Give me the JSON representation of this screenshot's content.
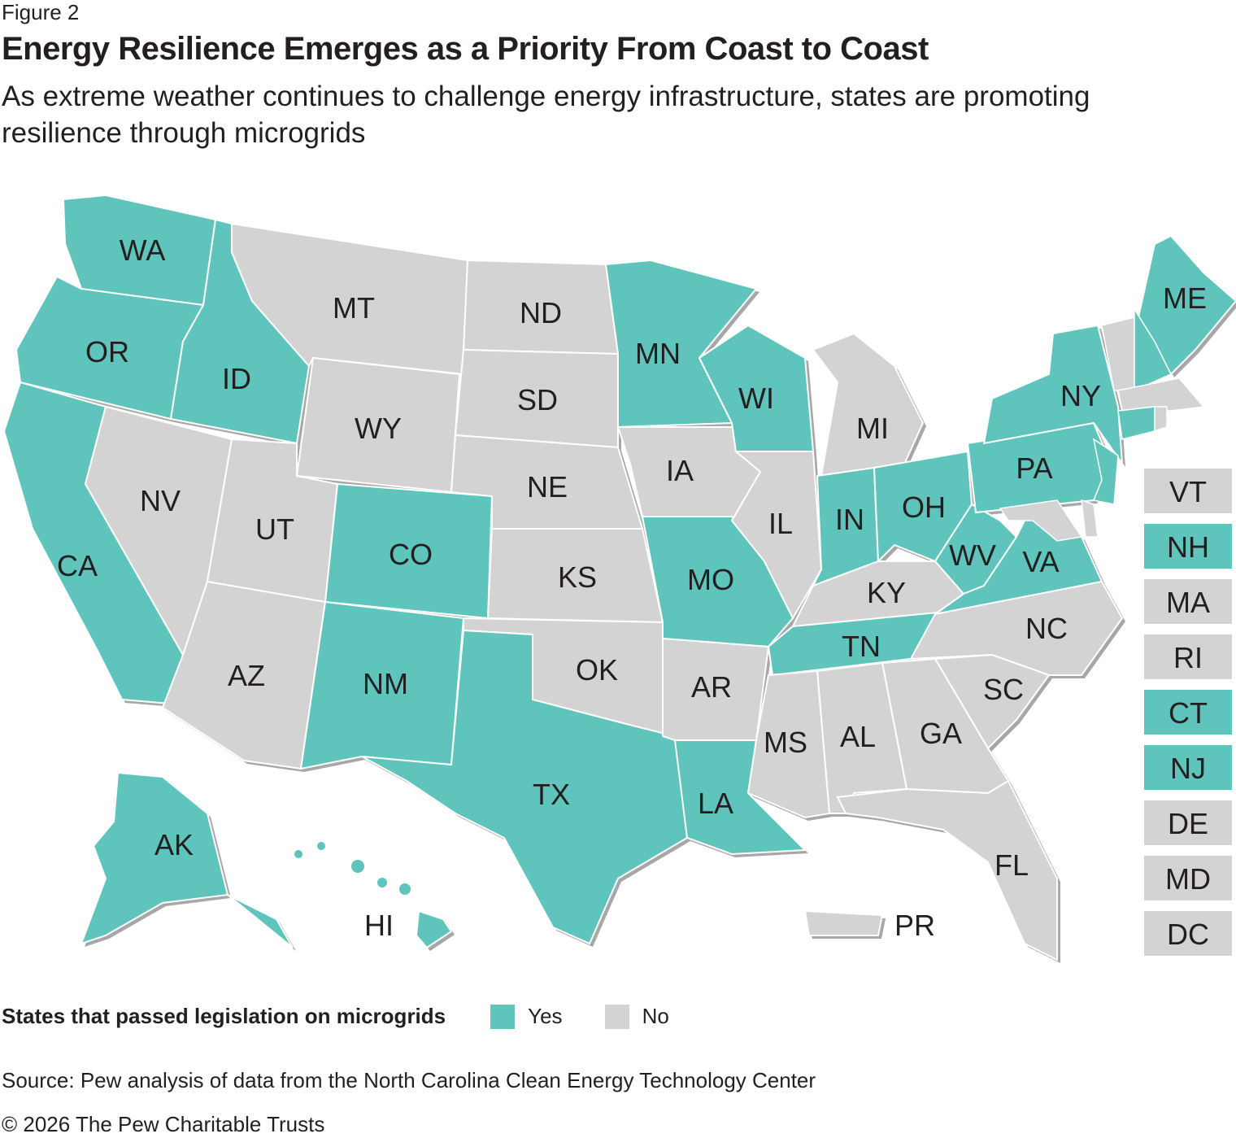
{
  "figure_label": "Figure 2",
  "title": "Energy Resilience Emerges as a Priority From Coast to Coast",
  "subtitle": "As extreme weather continues to challenge energy infrastructure, states are promoting resilience through microgrids",
  "colors": {
    "yes": "#5fc4bb",
    "no": "#d4d3d4",
    "border": "#ffffff",
    "shadow": "#a7a7a7"
  },
  "legend": {
    "title": "States that passed legislation on microgrids",
    "yes": "Yes",
    "no": "No"
  },
  "states": [
    {
      "abbr": "WA",
      "status": "yes"
    },
    {
      "abbr": "OR",
      "status": "yes"
    },
    {
      "abbr": "CA",
      "status": "yes"
    },
    {
      "abbr": "NV",
      "status": "no"
    },
    {
      "abbr": "ID",
      "status": "yes"
    },
    {
      "abbr": "MT",
      "status": "no"
    },
    {
      "abbr": "WY",
      "status": "no"
    },
    {
      "abbr": "UT",
      "status": "no"
    },
    {
      "abbr": "CO",
      "status": "yes"
    },
    {
      "abbr": "AZ",
      "status": "no"
    },
    {
      "abbr": "NM",
      "status": "yes"
    },
    {
      "abbr": "ND",
      "status": "no"
    },
    {
      "abbr": "SD",
      "status": "no"
    },
    {
      "abbr": "NE",
      "status": "no"
    },
    {
      "abbr": "KS",
      "status": "no"
    },
    {
      "abbr": "OK",
      "status": "no"
    },
    {
      "abbr": "TX",
      "status": "yes"
    },
    {
      "abbr": "MN",
      "status": "yes"
    },
    {
      "abbr": "IA",
      "status": "no"
    },
    {
      "abbr": "MO",
      "status": "yes"
    },
    {
      "abbr": "AR",
      "status": "no"
    },
    {
      "abbr": "LA",
      "status": "yes"
    },
    {
      "abbr": "WI",
      "status": "yes"
    },
    {
      "abbr": "IL",
      "status": "no"
    },
    {
      "abbr": "MI",
      "status": "no"
    },
    {
      "abbr": "IN",
      "status": "yes"
    },
    {
      "abbr": "OH",
      "status": "yes"
    },
    {
      "abbr": "KY",
      "status": "no"
    },
    {
      "abbr": "TN",
      "status": "yes"
    },
    {
      "abbr": "WV",
      "status": "yes"
    },
    {
      "abbr": "VA",
      "status": "yes"
    },
    {
      "abbr": "NC",
      "status": "no"
    },
    {
      "abbr": "SC",
      "status": "no"
    },
    {
      "abbr": "GA",
      "status": "no"
    },
    {
      "abbr": "AL",
      "status": "no"
    },
    {
      "abbr": "MS",
      "status": "no"
    },
    {
      "abbr": "FL",
      "status": "no"
    },
    {
      "abbr": "PA",
      "status": "yes"
    },
    {
      "abbr": "NY",
      "status": "yes"
    },
    {
      "abbr": "ME",
      "status": "yes"
    },
    {
      "abbr": "AK",
      "status": "yes"
    },
    {
      "abbr": "HI",
      "status": "yes"
    },
    {
      "abbr": "PR",
      "status": "no"
    }
  ],
  "small_states": [
    {
      "abbr": "VT",
      "status": "no"
    },
    {
      "abbr": "NH",
      "status": "yes"
    },
    {
      "abbr": "MA",
      "status": "no"
    },
    {
      "abbr": "RI",
      "status": "no"
    },
    {
      "abbr": "CT",
      "status": "yes"
    },
    {
      "abbr": "NJ",
      "status": "yes"
    },
    {
      "abbr": "DE",
      "status": "no"
    },
    {
      "abbr": "MD",
      "status": "no"
    },
    {
      "abbr": "DC",
      "status": "no"
    }
  ],
  "source": "Source: Pew analysis of data from the North Carolina Clean Energy Technology Center",
  "copyright": "© 2026 The Pew Charitable Trusts"
}
